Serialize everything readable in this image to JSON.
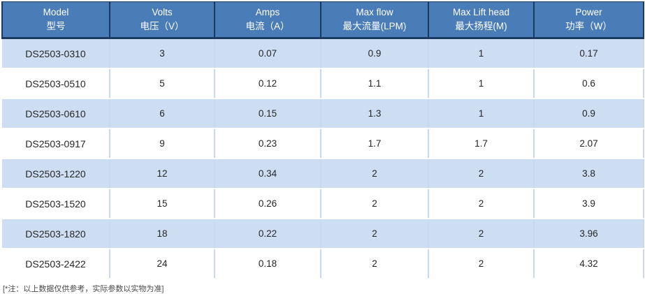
{
  "table": {
    "column_keys": [
      "model",
      "volts",
      "amps",
      "max-flow",
      "max-lift-head",
      "power"
    ],
    "columns": [
      {
        "en": "Model",
        "zh": "型号"
      },
      {
        "en": "Volts",
        "zh": "电压（V）"
      },
      {
        "en": "Amps",
        "zh": "电流（A）"
      },
      {
        "en": "Max flow",
        "zh": "最大流量(LPM)"
      },
      {
        "en": "Max Lift head",
        "zh": "最大扬程(M)"
      },
      {
        "en": "Power",
        "zh": "功率（W）"
      }
    ],
    "rows": [
      [
        "DS2503-0310",
        "3",
        "0.07",
        "0.9",
        "1",
        "0.17"
      ],
      [
        "DS2503-0510",
        "5",
        "0.12",
        "1.1",
        "1",
        "0.6"
      ],
      [
        "DS2503-0610",
        "6",
        "0.15",
        "1.3",
        "1",
        "0.9"
      ],
      [
        "DS2503-0917",
        "9",
        "0.23",
        "1.7",
        "1.7",
        "2.07"
      ],
      [
        "DS2503-1220",
        "12",
        "0.34",
        "2",
        "2",
        "3.8"
      ],
      [
        "DS2503-1520",
        "15",
        "0.26",
        "2",
        "2",
        "3.9"
      ],
      [
        "DS2503-1820",
        "18",
        "0.22",
        "2",
        "2",
        "3.96"
      ],
      [
        "DS2503-2422",
        "24",
        "0.18",
        "2",
        "2",
        "4.32"
      ]
    ]
  },
  "footnote": "[*注：以上数据仅供参考，实际参数以实物为准]",
  "colors": {
    "header_bg": "#4A7CB8",
    "header_text": "#FFFFFF",
    "header_border": "#1B3A5F",
    "row_alt_bg": "#CDDDF2",
    "row_bg": "#FFFFFF",
    "cell_divider": "#C6D9F1",
    "body_text": "#262626",
    "footnote_text": "#4A4A4A"
  }
}
